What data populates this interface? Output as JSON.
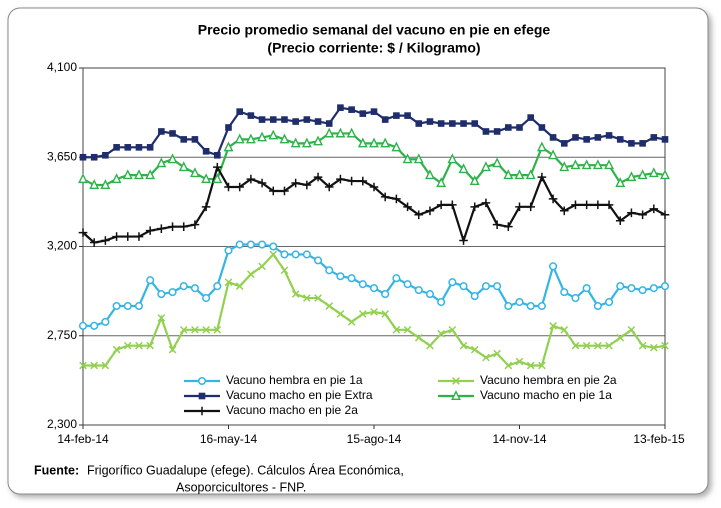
{
  "chart_data": {
    "type": "line",
    "title": "Precio promedio semanal del vacuno en pie en efege",
    "subtitle": "(Precio corriente: $ / Kilogramo)",
    "categories": [
      "14-feb-14",
      null,
      null,
      null,
      null,
      null,
      null,
      null,
      null,
      null,
      null,
      null,
      null,
      "16-may-14",
      null,
      null,
      null,
      null,
      null,
      null,
      null,
      null,
      null,
      null,
      null,
      null,
      "15-ago-14",
      null,
      null,
      null,
      null,
      null,
      null,
      null,
      null,
      null,
      null,
      null,
      null,
      "14-nov-14",
      null,
      null,
      null,
      null,
      null,
      null,
      null,
      null,
      null,
      null,
      null,
      null,
      "13-feb-15"
    ],
    "ylim": [
      2300,
      4100
    ],
    "yticks": [
      {
        "value": 2300,
        "label": "2,300"
      },
      {
        "value": 2750,
        "label": "2,750"
      },
      {
        "value": 3200,
        "label": "3,200"
      },
      {
        "value": 3650,
        "label": "3,650"
      },
      {
        "value": 4100,
        "label": "4,100"
      }
    ],
    "grid": true,
    "legend": "bottom-left",
    "series": [
      {
        "name": "Vacuno hembra en pie 1a",
        "color": "#33b5e5",
        "marker": "circle",
        "values": [
          2800,
          2800,
          2820,
          2900,
          2900,
          2900,
          3030,
          2960,
          2970,
          3000,
          2990,
          2940,
          3000,
          3180,
          3210,
          3210,
          3210,
          3200,
          3160,
          3160,
          3160,
          3130,
          3080,
          3050,
          3040,
          3010,
          2990,
          2960,
          3040,
          3010,
          2980,
          2960,
          2920,
          3020,
          3000,
          2950,
          3000,
          3000,
          2900,
          2920,
          2900,
          2900,
          3100,
          2970,
          2940,
          2990,
          2900,
          2920,
          3000,
          2990,
          2980,
          2990,
          3000
        ]
      },
      {
        "name": "Vacuno hembra en pie 2a",
        "color": "#92d050",
        "marker": "x",
        "values": [
          2600,
          2600,
          2600,
          2680,
          2700,
          2700,
          2700,
          2840,
          2680,
          2780,
          2780,
          2780,
          2780,
          3020,
          3000,
          3060,
          3100,
          3160,
          3080,
          2960,
          2940,
          2940,
          2900,
          2860,
          2820,
          2860,
          2870,
          2860,
          2780,
          2780,
          2740,
          2700,
          2760,
          2780,
          2700,
          2680,
          2640,
          2660,
          2600,
          2620,
          2600,
          2600,
          2800,
          2780,
          2700,
          2700,
          2700,
          2700,
          2740,
          2780,
          2700,
          2690,
          2700
        ]
      },
      {
        "name": "Vacuno macho en pie Extra",
        "color": "#1f2d6b",
        "marker": "square",
        "values": [
          3650,
          3650,
          3660,
          3700,
          3700,
          3700,
          3700,
          3780,
          3770,
          3740,
          3740,
          3680,
          3660,
          3800,
          3880,
          3860,
          3840,
          3840,
          3840,
          3830,
          3840,
          3830,
          3820,
          3900,
          3890,
          3870,
          3880,
          3840,
          3860,
          3860,
          3820,
          3830,
          3820,
          3820,
          3820,
          3820,
          3780,
          3780,
          3800,
          3800,
          3850,
          3800,
          3750,
          3720,
          3750,
          3740,
          3750,
          3760,
          3740,
          3720,
          3720,
          3750,
          3740
        ]
      },
      {
        "name": "Vacuno macho en pie 1a",
        "color": "#2fb24a",
        "marker": "triangle",
        "values": [
          3540,
          3510,
          3510,
          3540,
          3560,
          3560,
          3560,
          3620,
          3640,
          3600,
          3570,
          3540,
          3540,
          3700,
          3740,
          3740,
          3750,
          3760,
          3740,
          3720,
          3720,
          3730,
          3770,
          3770,
          3770,
          3720,
          3720,
          3720,
          3700,
          3640,
          3640,
          3560,
          3520,
          3640,
          3590,
          3530,
          3600,
          3620,
          3560,
          3560,
          3560,
          3700,
          3660,
          3600,
          3610,
          3610,
          3610,
          3610,
          3520,
          3550,
          3560,
          3570,
          3560
        ]
      },
      {
        "name": "Vacuno macho en pie 2a",
        "color": "#111111",
        "marker": "plus",
        "values": [
          3270,
          3220,
          3230,
          3250,
          3250,
          3250,
          3280,
          3290,
          3300,
          3300,
          3310,
          3400,
          3600,
          3500,
          3500,
          3540,
          3520,
          3480,
          3480,
          3520,
          3510,
          3550,
          3500,
          3540,
          3530,
          3530,
          3500,
          3450,
          3440,
          3400,
          3360,
          3380,
          3410,
          3410,
          3230,
          3400,
          3420,
          3310,
          3300,
          3400,
          3400,
          3550,
          3440,
          3380,
          3410,
          3410,
          3410,
          3410,
          3330,
          3370,
          3360,
          3390,
          3360
        ]
      }
    ],
    "source": {
      "label": "Fuente:",
      "lines": [
        "Frigorífico Guadalupe (efege). Cálculos Área Económica,",
        "Asoporcicultores - FNP."
      ]
    }
  }
}
